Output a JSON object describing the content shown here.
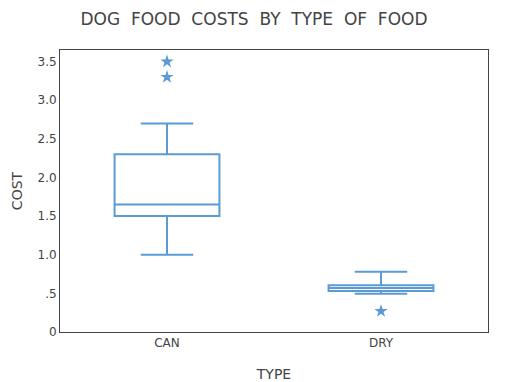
{
  "chart_data": {
    "type": "box",
    "title": "DOG  FOOD  COSTS  BY  TYPE  OF  FOOD",
    "xlabel": "TYPE",
    "ylabel": "COST",
    "categories": [
      "CAN",
      "DRY"
    ],
    "boxes": [
      {
        "q1": 1.5,
        "median": 1.65,
        "q3": 2.3,
        "whisker_low": 1.0,
        "whisker_high": 2.7,
        "outliers": [
          3.3,
          3.5
        ]
      },
      {
        "q1": 0.53,
        "median": 0.57,
        "q3": 0.605,
        "whisker_low": 0.495,
        "whisker_high": 0.78,
        "outliers": [
          0.27
        ]
      }
    ],
    "color": "#5b9bd5",
    "marker": "star",
    "ylim": [
      0,
      3.65
    ],
    "yticks": [
      0,
      {
        "value": 0.5,
        "label": ".5"
      },
      {
        "value": 1.0,
        "label": "1.0"
      },
      1.5,
      {
        "value": 2.0,
        "label": "2.0"
      },
      2.5,
      {
        "value": 3.0,
        "label": "3.0"
      },
      3.5
    ],
    "grid": false
  }
}
